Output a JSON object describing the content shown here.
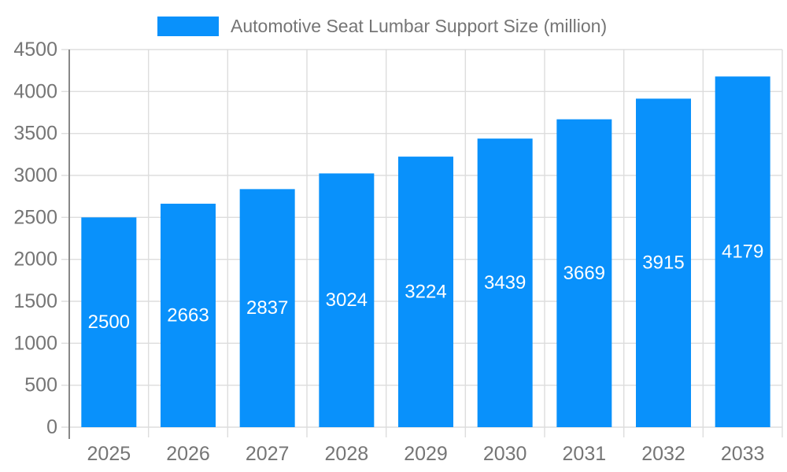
{
  "legend": {
    "label": "Automotive Seat Lumbar Support Size (million)"
  },
  "chart_data": {
    "type": "bar",
    "title": "Automotive Seat Lumbar Support Size (million)",
    "categories": [
      "2025",
      "2026",
      "2027",
      "2028",
      "2029",
      "2030",
      "2031",
      "2032",
      "2033"
    ],
    "values": [
      2500,
      2663,
      2837,
      3024,
      3224,
      3439,
      3669,
      3915,
      4179
    ],
    "series_name": "Automotive Seat Lumbar Support Size (million)",
    "xlabel": "",
    "ylabel": "",
    "ylim": [
      0,
      4500
    ],
    "ytick_step": 500,
    "ytick_labels": [
      "0",
      "500",
      "1000",
      "1500",
      "2000",
      "2500",
      "3000",
      "3500",
      "4000",
      "4500"
    ],
    "grid": true,
    "legend_position": "top",
    "value_labels": "inside-center",
    "colors": {
      "bar": "#0991fb",
      "bar_label_text": "#ffffff",
      "axis_text": "#757575",
      "grid_line": "#dddddd",
      "axis_line": "#888888",
      "background": "#ffffff"
    }
  }
}
